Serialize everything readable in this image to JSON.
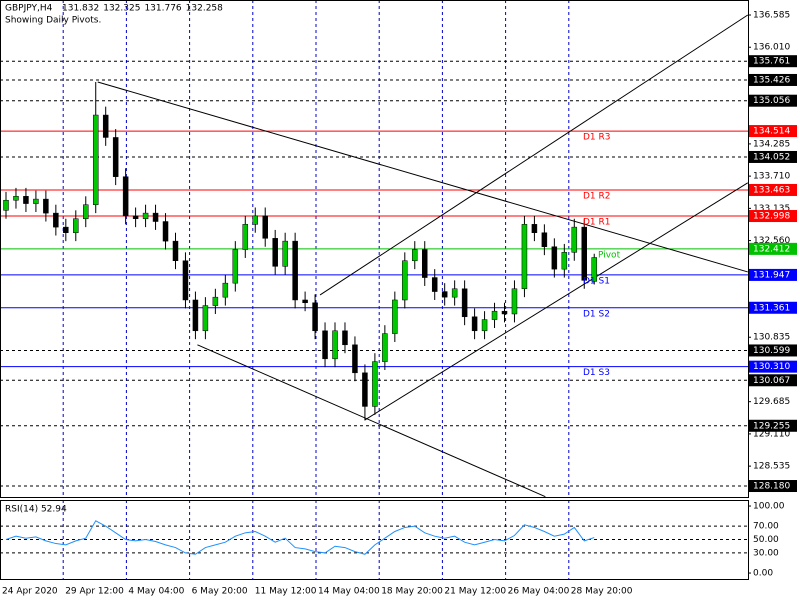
{
  "chart_data": {
    "type": "candlestick",
    "symbol": "GBPJPY,H4",
    "subtitle": "Showing Daily Pivots.",
    "ylim": [
      127.984,
      136.853
    ],
    "yticks": [
      136.585,
      {
        "value": 136.01,
        "label": "136.010"
      },
      134.285,
      {
        "value": 133.71,
        "label": "133.710"
      },
      133.135,
      {
        "value": 132.56,
        "label": "132.560"
      },
      130.835,
      129.685,
      {
        "value": 129.11,
        "label": "129.110"
      },
      128.535
    ],
    "x_labels": [
      "24 Apr 2020",
      "29 Apr 12:00",
      "4 May 04:00",
      "6 May 20:00",
      "11 May 12:00",
      "14 May 04:00",
      "18 May 20:00",
      "21 May 12:00",
      "26 May 04:00",
      "28 May 20:00"
    ],
    "up_color": "#00c800",
    "down_color": "#000000",
    "open": [
      133.1,
      133.28,
      133.35,
      133.22,
      133.3,
      133.05,
      132.8,
      132.7,
      132.95,
      133.2,
      134.8,
      134.4,
      133.7,
      133.0,
      132.95,
      133.05,
      132.9,
      132.55,
      132.2,
      131.5,
      130.95,
      131.4,
      131.55,
      131.8,
      132.4,
      132.85,
      133.0,
      132.6,
      132.1,
      132.55,
      131.5,
      131.45,
      130.95,
      130.45,
      130.95,
      130.7,
      130.2,
      129.6,
      130.4,
      130.9,
      131.5,
      132.2,
      132.4,
      131.9,
      131.65,
      131.55,
      131.7,
      131.2,
      130.95,
      131.15,
      131.3,
      131.25,
      131.7,
      132.85,
      132.7,
      132.45,
      132.05,
      132.35,
      132.8,
      131.832
    ],
    "high": [
      133.43,
      133.5,
      133.5,
      133.45,
      133.45,
      133.2,
      132.95,
      133.1,
      133.35,
      135.39,
      134.95,
      134.55,
      133.85,
      133.15,
      133.2,
      133.2,
      133.05,
      132.7,
      132.35,
      131.65,
      131.55,
      131.7,
      131.95,
      132.55,
      133.0,
      133.15,
      133.15,
      132.75,
      132.7,
      132.7,
      131.65,
      131.6,
      131.1,
      131.1,
      131.1,
      130.85,
      130.35,
      130.55,
      131.05,
      131.65,
      132.35,
      132.55,
      132.55,
      132.05,
      131.8,
      131.85,
      131.85,
      131.35,
      131.3,
      131.45,
      131.45,
      131.85,
      133.0,
      133.0,
      132.85,
      132.6,
      132.5,
      132.95,
      132.95,
      132.325
    ],
    "low": [
      132.95,
      133.13,
      133.07,
      133.07,
      132.9,
      132.65,
      132.55,
      132.55,
      132.8,
      133.05,
      134.25,
      133.55,
      132.85,
      132.8,
      132.8,
      132.75,
      132.4,
      132.05,
      131.35,
      130.8,
      130.8,
      131.25,
      131.4,
      131.65,
      132.25,
      132.7,
      132.45,
      131.95,
      131.95,
      131.35,
      131.3,
      130.8,
      130.3,
      130.3,
      130.55,
      130.05,
      129.35,
      129.45,
      130.25,
      130.75,
      131.35,
      132.05,
      131.75,
      131.5,
      131.4,
      131.4,
      131.05,
      130.8,
      130.8,
      131.0,
      131.1,
      131.1,
      131.55,
      132.55,
      132.3,
      131.9,
      131.9,
      132.2,
      131.7,
      131.776
    ],
    "close": [
      133.28,
      133.35,
      133.22,
      133.3,
      133.05,
      132.8,
      132.7,
      132.95,
      133.2,
      134.8,
      134.4,
      133.7,
      133.0,
      132.95,
      133.05,
      132.9,
      132.55,
      132.2,
      131.5,
      130.95,
      131.4,
      131.55,
      131.8,
      132.4,
      132.85,
      133.0,
      132.6,
      132.1,
      132.55,
      131.5,
      131.45,
      130.95,
      130.45,
      130.95,
      130.7,
      130.2,
      129.6,
      130.4,
      130.9,
      131.5,
      132.2,
      132.4,
      131.9,
      131.65,
      131.55,
      131.7,
      131.2,
      130.95,
      131.15,
      131.3,
      131.25,
      131.7,
      132.85,
      132.7,
      132.45,
      132.05,
      132.35,
      132.8,
      131.85,
      132.258
    ],
    "pivots": [
      {
        "label": "D1 R3",
        "value": 134.514,
        "color": "#ff0000"
      },
      {
        "label": "D1 R2",
        "value": 133.463,
        "color": "#ff0000"
      },
      {
        "label": "D1 R1",
        "value": 132.998,
        "color": "#ff0000"
      },
      {
        "label": "Pivot",
        "value": 132.412,
        "color": "#00c000"
      },
      {
        "label": "D1 S1",
        "value": 131.947,
        "color": "#0000ff"
      },
      {
        "label": "D1 S2",
        "value": 131.361,
        "color": "#0000ff"
      },
      {
        "label": "D1 S3",
        "value": {
          "value": 130.31,
          "label": "130.310"
        },
        "color": "#0000ff"
      }
    ],
    "levels": [
      135.761,
      135.426,
      135.056,
      134.052,
      130.599,
      130.067,
      129.255,
      {
        "value": 128.18,
        "label": "128.180"
      }
    ],
    "trendlines": [
      {
        "x": [
          9.2,
          74.4
        ],
        "y": [
          135.39,
          132.0
        ]
      },
      {
        "x": [
          19.2,
          54.1
        ],
        "y": [
          130.7,
          127.99
        ]
      },
      {
        "x": [
          31.5,
          74.4
        ],
        "y": [
          131.59,
          136.585
        ]
      },
      {
        "x": [
          36.0,
          74.4
        ],
        "y": [
          129.36,
          133.59
        ]
      }
    ],
    "rsi": {
      "title": "RSI(14) 52.94",
      "color": "#1e90ff",
      "ylim": [
        -10.4,
        109
      ],
      "yticks": [
        {
          "value": 100,
          "label": "100.00"
        },
        {
          "value": 70,
          "label": "70.00"
        },
        {
          "value": 50,
          "label": "50.00"
        },
        {
          "value": 30,
          "label": "30.00"
        },
        {
          "value": 0,
          "label": "0.00"
        }
      ],
      "values": [
        50,
        55,
        52,
        54,
        48,
        44,
        42,
        48,
        52,
        78,
        70,
        60,
        50,
        48,
        50,
        47,
        42,
        38,
        30,
        28,
        38,
        42,
        46,
        55,
        60,
        62,
        55,
        46,
        52,
        38,
        36,
        32,
        30,
        40,
        38,
        32,
        28,
        42,
        52,
        62,
        68,
        70,
        60,
        55,
        52,
        55,
        46,
        42,
        46,
        50,
        48,
        56,
        72,
        68,
        62,
        55,
        58,
        68,
        48,
        52.94
      ]
    }
  }
}
